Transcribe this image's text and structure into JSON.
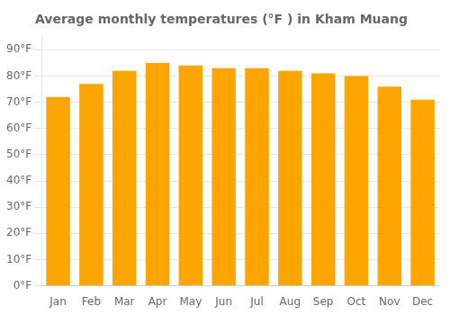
{
  "chart_data": {
    "type": "bar",
    "title": "Average monthly temperatures (°F ) in Kham Muang",
    "categories": [
      "Jan",
      "Feb",
      "Mar",
      "Apr",
      "May",
      "Jun",
      "Jul",
      "Aug",
      "Sep",
      "Oct",
      "Nov",
      "Dec"
    ],
    "values": [
      72,
      77,
      82,
      85,
      84,
      83,
      83,
      82,
      81,
      80,
      76,
      71
    ],
    "color": "#FFA500",
    "ylim": [
      0,
      95
    ],
    "yticks": [
      {
        "value": 0,
        "label": "0°F"
      },
      {
        "value": 10,
        "label": "10°F"
      },
      {
        "value": 20,
        "label": "20°F"
      },
      {
        "value": 30,
        "label": "30°F"
      },
      {
        "value": 40,
        "label": "40°F"
      },
      {
        "value": 50,
        "label": "50°F"
      },
      {
        "value": 60,
        "label": "60°F"
      },
      {
        "value": 70,
        "label": "70°F"
      },
      {
        "value": 80,
        "label": "80°F"
      },
      {
        "value": 90,
        "label": "90°F"
      }
    ],
    "grid": true
  }
}
